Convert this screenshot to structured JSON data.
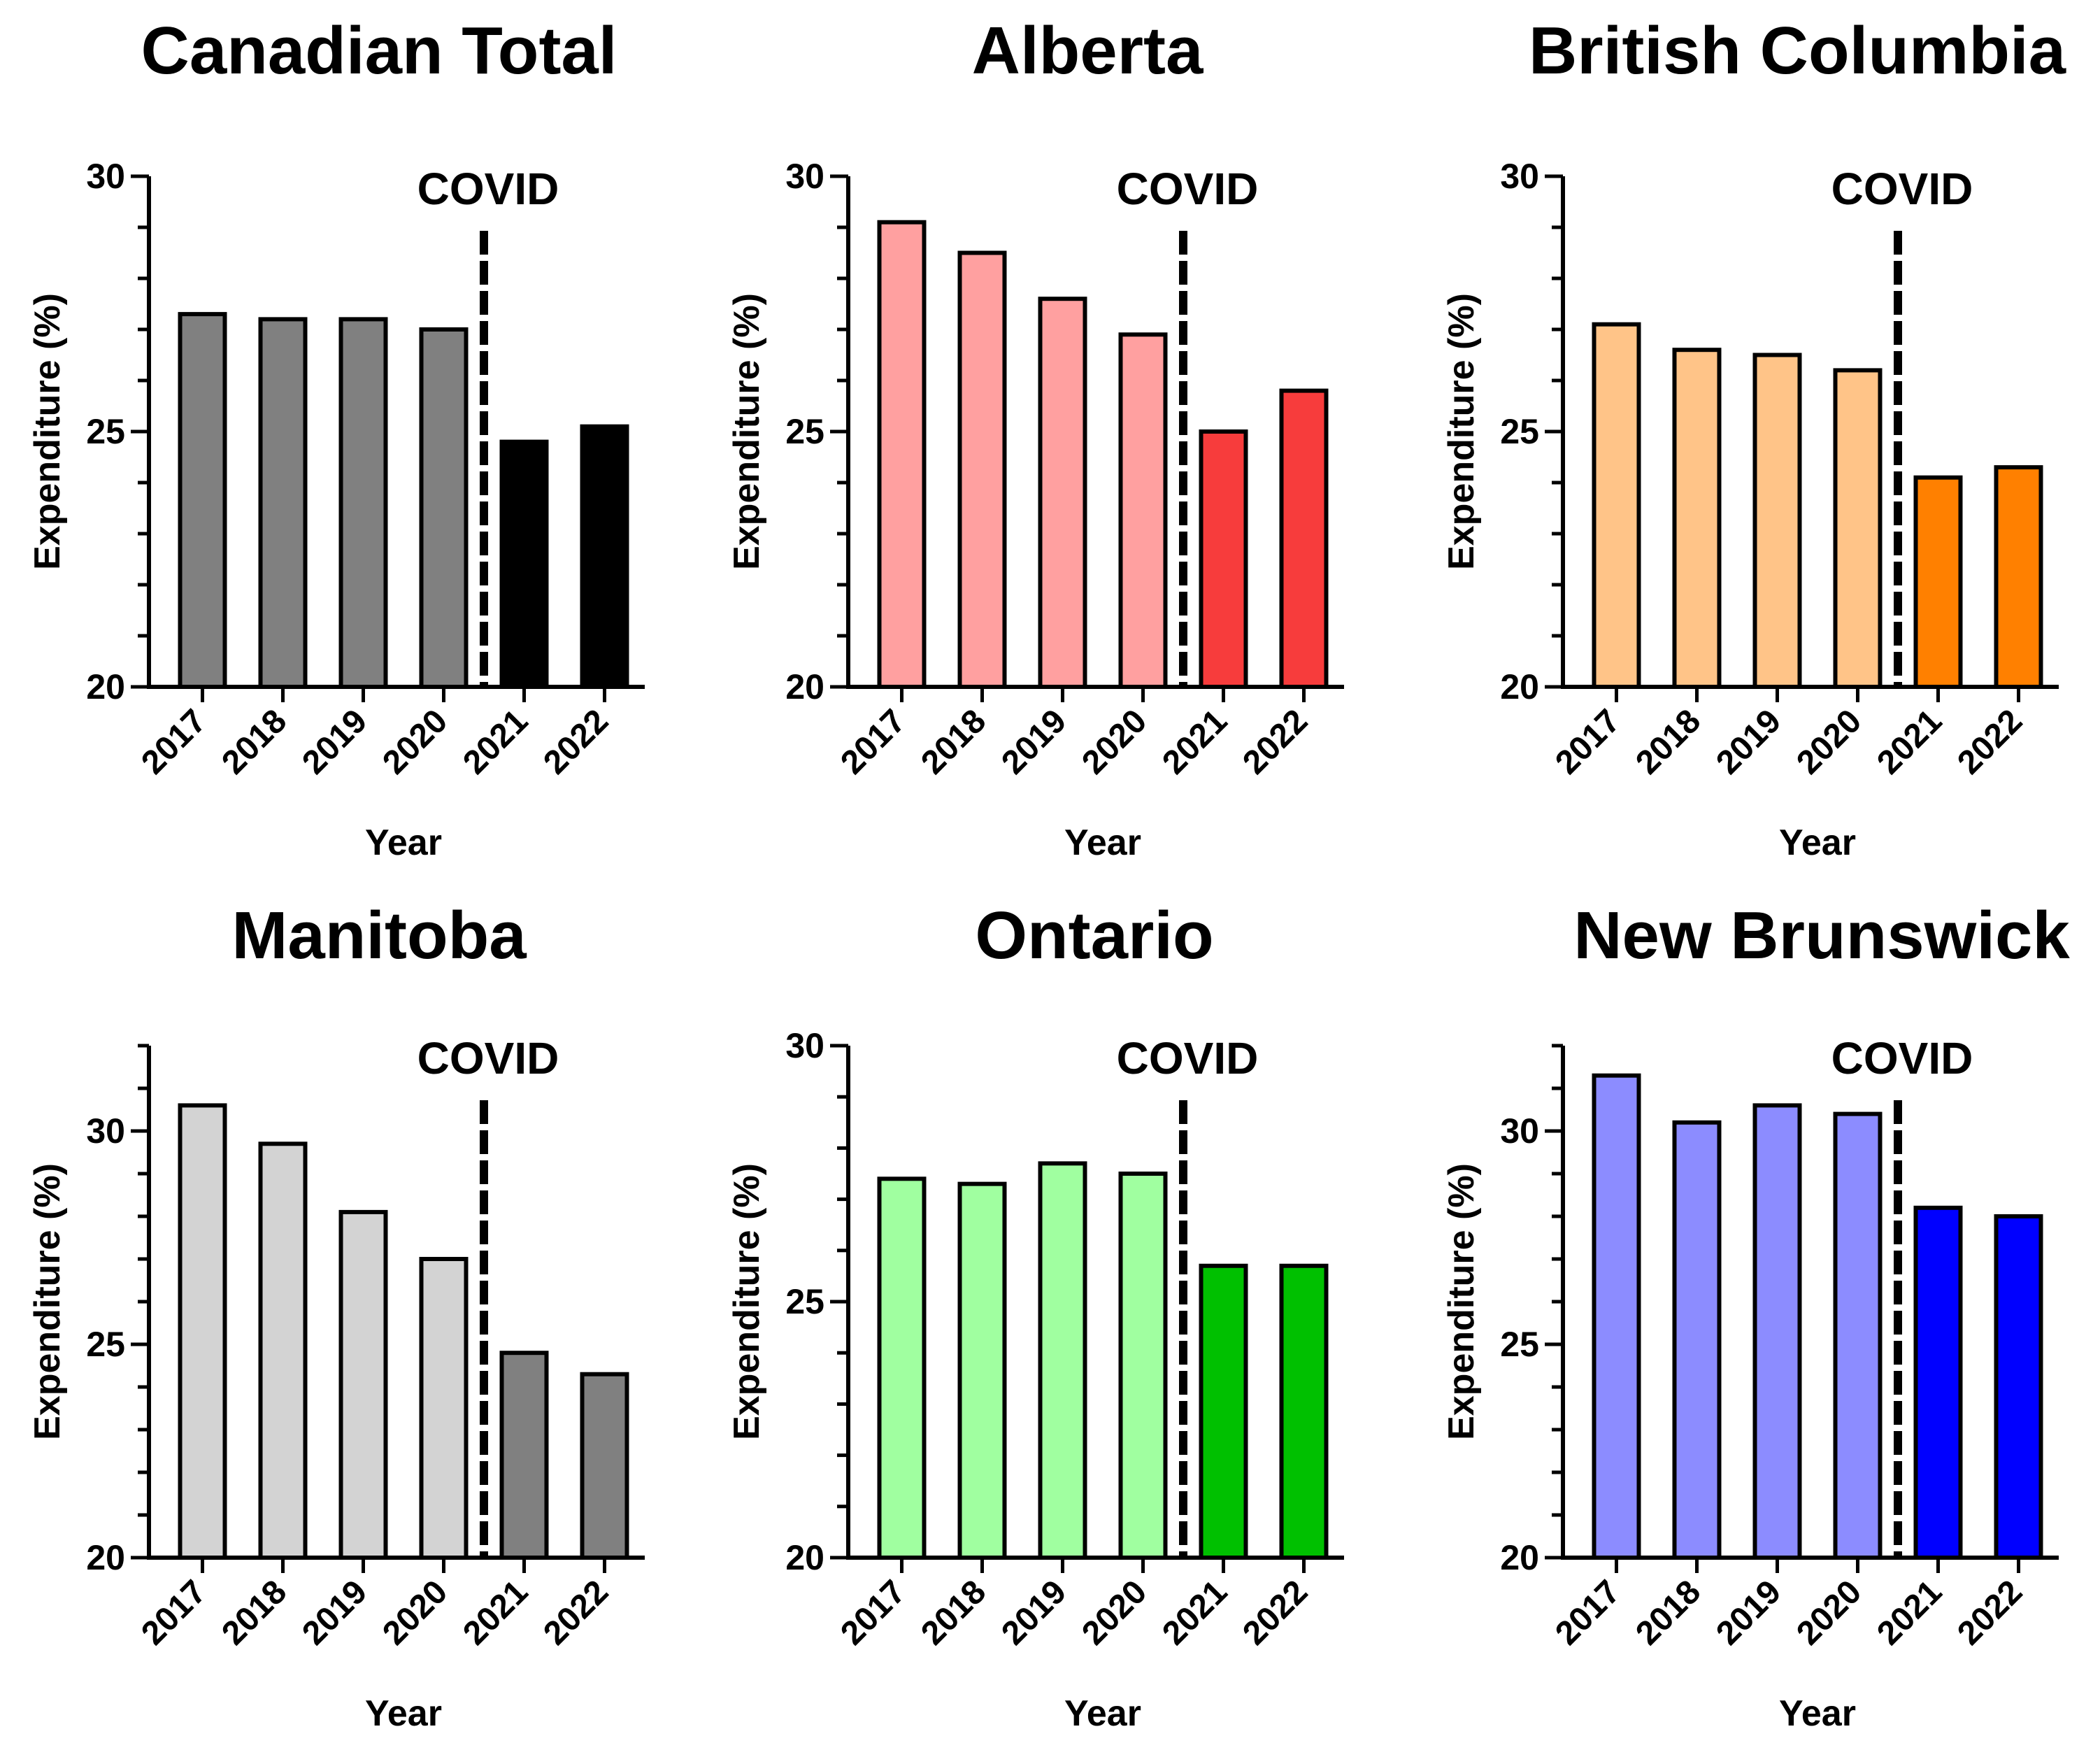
{
  "chart_data": [
    {
      "type": "bar",
      "title": "Canadian Total",
      "categories": [
        "2017",
        "2018",
        "2019",
        "2020",
        "2021",
        "2022"
      ],
      "values": [
        27.3,
        27.2,
        27.2,
        27.0,
        24.8,
        25.1
      ],
      "xlabel": "Year",
      "ylabel": "Expenditure (%)",
      "ylim": [
        20,
        30
      ],
      "yticks": [
        "20",
        "25",
        "30"
      ],
      "annotation": "COVID",
      "colors": {
        "pre": "#808080",
        "post": "#000000"
      }
    },
    {
      "type": "bar",
      "title": "Alberta",
      "categories": [
        "2017",
        "2018",
        "2019",
        "2020",
        "2021",
        "2022"
      ],
      "values": [
        29.1,
        28.5,
        27.6,
        26.9,
        25.0,
        25.8
      ],
      "xlabel": "Year",
      "ylabel": "Expenditure (%)",
      "ylim": [
        20,
        30
      ],
      "yticks": [
        "20",
        "25",
        "30"
      ],
      "annotation": "COVID",
      "colors": {
        "pre": "#ffa0a0",
        "post": "#f73c3c"
      }
    },
    {
      "type": "bar",
      "title": "British Columbia",
      "categories": [
        "2017",
        "2018",
        "2019",
        "2020",
        "2021",
        "2022"
      ],
      "values": [
        27.1,
        26.6,
        26.5,
        26.2,
        24.1,
        24.3
      ],
      "xlabel": "Year",
      "ylabel": "Expenditure (%)",
      "ylim": [
        20,
        30
      ],
      "yticks": [
        "20",
        "25",
        "30"
      ],
      "annotation": "COVID",
      "colors": {
        "pre": "#ffc488",
        "post": "#ff8000"
      }
    },
    {
      "type": "bar",
      "title": "Manitoba",
      "categories": [
        "2017",
        "2018",
        "2019",
        "2020",
        "2021",
        "2022"
      ],
      "values": [
        30.6,
        29.7,
        28.1,
        27.0,
        24.8,
        24.3
      ],
      "xlabel": "Year",
      "ylabel": "Expenditure (%)",
      "ylim": [
        20,
        32
      ],
      "yticks": [
        "20",
        "25",
        "30"
      ],
      "annotation": "COVID",
      "colors": {
        "pre": "#d3d3d3",
        "post": "#808080"
      }
    },
    {
      "type": "bar",
      "title": "Ontario",
      "categories": [
        "2017",
        "2018",
        "2019",
        "2020",
        "2021",
        "2022"
      ],
      "values": [
        27.4,
        27.3,
        27.7,
        27.5,
        25.7,
        25.7
      ],
      "xlabel": "Year",
      "ylabel": "Expenditure (%)",
      "ylim": [
        20,
        30
      ],
      "yticks": [
        "20",
        "25",
        "30"
      ],
      "annotation": "COVID",
      "colors": {
        "pre": "#a0ffa0",
        "post": "#00c000"
      }
    },
    {
      "type": "bar",
      "title": "New Brunswick",
      "categories": [
        "2017",
        "2018",
        "2019",
        "2020",
        "2021",
        "2022"
      ],
      "values": [
        31.3,
        30.2,
        30.6,
        30.4,
        28.2,
        28.0
      ],
      "xlabel": "Year",
      "ylabel": "Expenditure (%)",
      "ylim": [
        20,
        32
      ],
      "yticks": [
        "20",
        "25",
        "30"
      ],
      "annotation": "COVID",
      "colors": {
        "pre": "#8c8cff",
        "post": "#0000ff"
      }
    }
  ]
}
